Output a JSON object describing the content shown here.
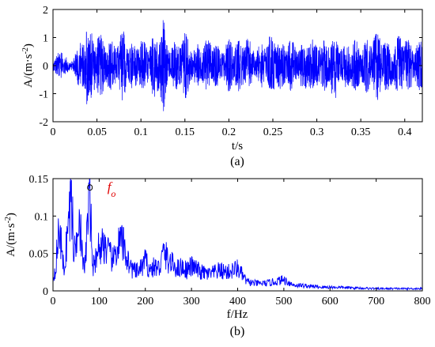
{
  "chart_data": [
    {
      "type": "line",
      "panel_label": "(a)",
      "xlabel": "t/s",
      "ylabel": "A/(m·s",
      "ylabel_sup": "-2",
      "ylabel_close": ")",
      "xlim": [
        0,
        0.42
      ],
      "ylim": [
        -2,
        2
      ],
      "x_ticks": [
        0,
        0.05,
        0.1,
        0.15,
        0.2,
        0.25,
        0.3,
        0.35,
        0.4
      ],
      "x_tick_labels": [
        "0",
        "0.05",
        "0.1",
        "0.15",
        "0.2",
        "0.25",
        "0.3",
        "0.35",
        "0.4"
      ],
      "y_ticks": [
        -2,
        -1,
        0,
        1,
        2
      ],
      "y_tick_labels": [
        "-2",
        "-1",
        "0",
        "1",
        "2"
      ],
      "color": "#0000ff",
      "envelope": {
        "t": [
          0,
          0.01,
          0.02,
          0.025,
          0.03,
          0.035,
          0.038,
          0.04,
          0.05,
          0.06,
          0.07,
          0.08,
          0.09,
          0.1,
          0.11,
          0.12,
          0.125,
          0.13,
          0.14,
          0.15,
          0.16,
          0.17,
          0.18,
          0.19,
          0.2,
          0.21,
          0.22,
          0.23,
          0.24,
          0.25,
          0.26,
          0.27,
          0.28,
          0.29,
          0.3,
          0.31,
          0.32,
          0.33,
          0.34,
          0.35,
          0.36,
          0.37,
          0.38,
          0.39,
          0.4,
          0.41,
          0.42
        ],
        "amp": [
          0.3,
          0.6,
          0.1,
          0.6,
          0.8,
          1.1,
          1.95,
          1.4,
          1.2,
          1.0,
          0.9,
          1.3,
          0.8,
          1.0,
          0.9,
          1.4,
          1.85,
          0.8,
          0.9,
          1.3,
          0.7,
          0.9,
          1.1,
          0.6,
          1.0,
          0.9,
          1.1,
          0.6,
          0.9,
          1.2,
          0.8,
          1.0,
          0.7,
          1.1,
          1.0,
          0.9,
          1.3,
          0.7,
          1.0,
          0.8,
          1.1,
          1.3,
          0.9,
          1.0,
          1.2,
          0.8,
          1.0
        ]
      }
    },
    {
      "type": "line",
      "panel_label": "(b)",
      "xlabel": "f/Hz",
      "ylabel": "A/(m·s",
      "ylabel_sup": "-2",
      "ylabel_close": ")",
      "xlim": [
        0,
        800
      ],
      "ylim": [
        0,
        0.15
      ],
      "x_ticks": [
        0,
        100,
        200,
        300,
        400,
        500,
        600,
        700,
        800
      ],
      "x_tick_labels": [
        "0",
        "100",
        "200",
        "300",
        "400",
        "500",
        "600",
        "700",
        "800"
      ],
      "y_ticks": [
        0,
        0.05,
        0.1,
        0.15
      ],
      "y_tick_labels": [
        "0",
        "0.05",
        "0.1",
        "0.15"
      ],
      "color": "#0000ff",
      "annotation": {
        "text": "f",
        "subscript": "o",
        "x": 80,
        "y": 0.135,
        "color": "#e00000"
      },
      "spectrum": {
        "f": [
          0,
          5,
          10,
          15,
          20,
          25,
          30,
          35,
          40,
          45,
          50,
          55,
          60,
          65,
          70,
          75,
          80,
          85,
          90,
          95,
          100,
          110,
          120,
          130,
          140,
          150,
          160,
          170,
          180,
          190,
          200,
          210,
          220,
          230,
          240,
          250,
          260,
          270,
          280,
          290,
          300,
          320,
          340,
          360,
          380,
          400,
          420,
          440,
          460,
          480,
          500,
          520,
          540,
          560,
          580,
          600,
          650,
          700,
          750,
          800
        ],
        "amp": [
          0.015,
          0.03,
          0.06,
          0.088,
          0.04,
          0.03,
          0.07,
          0.1,
          0.132,
          0.05,
          0.06,
          0.12,
          0.08,
          0.03,
          0.04,
          0.09,
          0.134,
          0.04,
          0.03,
          0.06,
          0.055,
          0.065,
          0.05,
          0.04,
          0.06,
          0.065,
          0.045,
          0.03,
          0.025,
          0.03,
          0.04,
          0.028,
          0.032,
          0.03,
          0.052,
          0.04,
          0.035,
          0.03,
          0.032,
          0.028,
          0.033,
          0.025,
          0.022,
          0.027,
          0.025,
          0.03,
          0.012,
          0.01,
          0.01,
          0.012,
          0.015,
          0.008,
          0.007,
          0.006,
          0.005,
          0.005,
          0.004,
          0.003,
          0.003,
          0.003
        ]
      }
    }
  ]
}
